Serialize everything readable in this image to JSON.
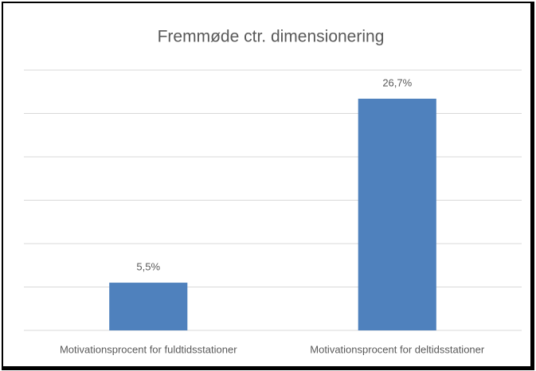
{
  "chart_data": {
    "type": "bar",
    "title": "Fremmøde ctr. dimensionering",
    "categories": [
      "Motivationsprocent for fuldtidsstationer",
      "Motivationsprocent for deltidsstationer"
    ],
    "values": [
      5.5,
      26.7
    ],
    "value_labels": [
      "5,5%",
      "26,7%"
    ],
    "color": "#4f81bd",
    "ylim": [
      0,
      30
    ],
    "yticks": [
      0,
      5,
      10,
      15,
      20,
      25,
      30
    ],
    "grid": true
  }
}
